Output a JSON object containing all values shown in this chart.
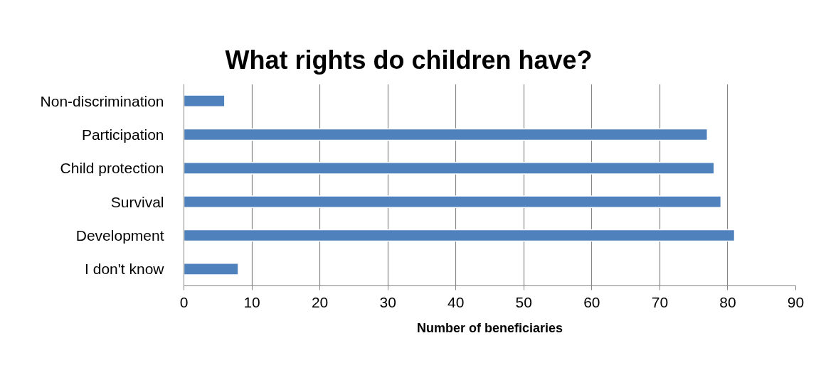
{
  "chart_data": {
    "type": "bar",
    "orientation": "horizontal",
    "title": "What rights do children have?",
    "xlabel": "Number of beneficiaries",
    "categories": [
      "Non-discrimination",
      "Participation",
      "Child protection",
      "Survival",
      "Development",
      "I don't know"
    ],
    "values": [
      6,
      77,
      78,
      79,
      81,
      8
    ],
    "color": "#4f81bd",
    "xlim": [
      0,
      90
    ],
    "xticks": [
      0,
      10,
      20,
      30,
      40,
      50,
      60,
      70,
      80,
      90
    ],
    "grid": "x"
  }
}
